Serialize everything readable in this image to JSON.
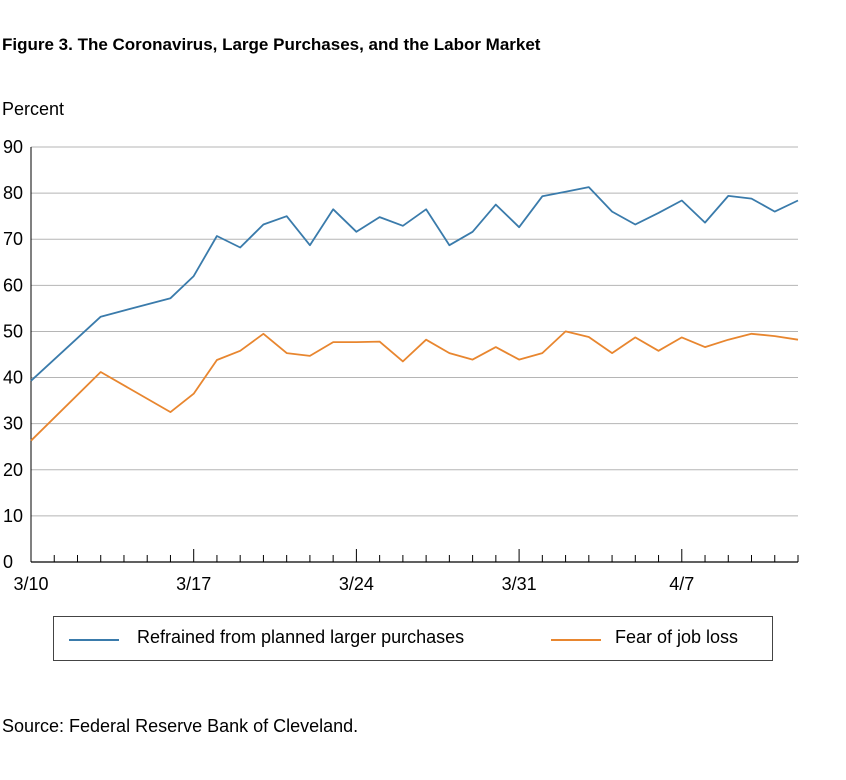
{
  "figure": {
    "title": "Figure 3. The Coronavirus, Large Purchases, and the Labor Market",
    "unit_label": "Percent",
    "source": "Source: Federal Reserve Bank of Cleveland."
  },
  "chart_data": {
    "type": "line",
    "title": "Figure 3. The Coronavirus, Large Purchases, and the Labor Market",
    "ylabel": "Percent",
    "ylim": [
      0,
      90
    ],
    "yticks": [
      0,
      10,
      20,
      30,
      40,
      50,
      60,
      70,
      80,
      90
    ],
    "grid": true,
    "legend_position": "bottom",
    "x_tick_labels": [
      {
        "label": "3/10",
        "index": 0
      },
      {
        "label": "3/17",
        "index": 7
      },
      {
        "label": "3/24",
        "index": 14
      },
      {
        "label": "3/31",
        "index": 21
      },
      {
        "label": "4/7",
        "index": 28
      }
    ],
    "x_days": 33,
    "series": [
      {
        "name": "Refrained from planned larger purchases",
        "color": "#3a7bab",
        "points": [
          [
            0,
            39.3
          ],
          [
            3,
            53.2
          ],
          [
            6,
            57.2
          ],
          [
            7,
            62.0
          ],
          [
            8,
            70.7
          ],
          [
            9,
            68.2
          ],
          [
            10,
            73.2
          ],
          [
            11,
            75.0
          ],
          [
            12,
            68.7
          ],
          [
            13,
            76.5
          ],
          [
            14,
            71.6
          ],
          [
            15,
            74.8
          ],
          [
            16,
            72.9
          ],
          [
            17,
            76.5
          ],
          [
            18,
            68.7
          ],
          [
            19,
            71.6
          ],
          [
            20,
            77.5
          ],
          [
            21,
            72.6
          ],
          [
            22,
            79.3
          ],
          [
            23,
            80.3
          ],
          [
            24,
            81.3
          ],
          [
            25,
            76.0
          ],
          [
            26,
            73.2
          ],
          [
            27,
            75.7
          ],
          [
            28,
            78.4
          ],
          [
            29,
            73.6
          ],
          [
            30,
            79.4
          ],
          [
            31,
            78.8
          ],
          [
            32,
            76.0
          ],
          [
            33,
            78.4
          ]
        ]
      },
      {
        "name": "Fear of job loss",
        "color": "#e8862f",
        "points": [
          [
            0,
            26.3
          ],
          [
            3,
            41.2
          ],
          [
            6,
            32.5
          ],
          [
            7,
            36.5
          ],
          [
            8,
            43.8
          ],
          [
            9,
            45.8
          ],
          [
            10,
            49.5
          ],
          [
            11,
            45.3
          ],
          [
            12,
            44.7
          ],
          [
            13,
            47.7
          ],
          [
            14,
            47.7
          ],
          [
            15,
            47.8
          ],
          [
            16,
            43.5
          ],
          [
            17,
            48.2
          ],
          [
            18,
            45.3
          ],
          [
            19,
            43.9
          ],
          [
            20,
            46.6
          ],
          [
            21,
            43.9
          ],
          [
            22,
            45.3
          ],
          [
            23,
            50.0
          ],
          [
            24,
            48.8
          ],
          [
            25,
            45.3
          ],
          [
            26,
            48.7
          ],
          [
            27,
            45.8
          ],
          [
            28,
            48.7
          ],
          [
            29,
            46.6
          ],
          [
            30,
            48.2
          ],
          [
            31,
            49.5
          ],
          [
            32,
            49.0
          ],
          [
            33,
            48.2
          ]
        ]
      }
    ]
  }
}
